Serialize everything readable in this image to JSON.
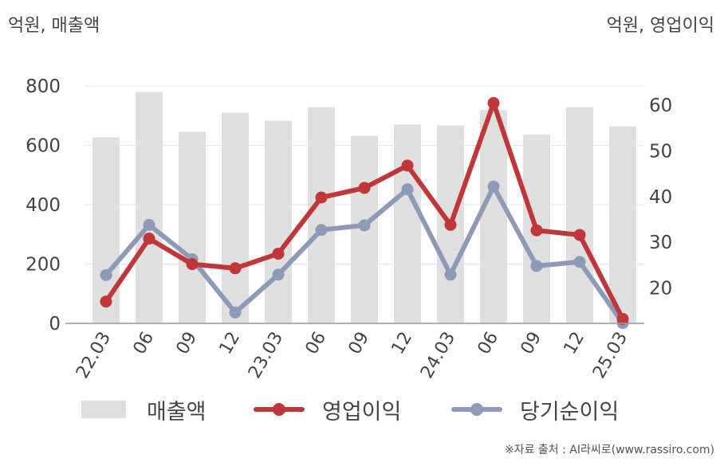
{
  "units": {
    "left": "억원, 매출액",
    "right": "억원, 영업이익"
  },
  "legend": {
    "sales": "매출액",
    "op": "영업이익",
    "net": "당기순이익"
  },
  "source": "※자료 출처 : AI라씨로(www.rassiro.com)",
  "colors": {
    "sales": "#e0e0e0",
    "op": "#c0373a",
    "net": "#8d9bb8",
    "grid": "#e6e6e6",
    "axis": "#999999",
    "text": "#444444"
  },
  "chart_data": {
    "type": "bar+line",
    "categories": [
      "22.03",
      "06",
      "09",
      "12",
      "23.03",
      "06",
      "09",
      "12",
      "24.03",
      "06",
      "09",
      "12",
      "25.03"
    ],
    "left_axis": {
      "ylim": [
        0,
        800
      ],
      "ticks": [
        0,
        200,
        400,
        600,
        800
      ]
    },
    "right_axis": {
      "ylim": [
        11,
        63
      ],
      "ticks": [
        20,
        30,
        40,
        50,
        60
      ]
    },
    "series": [
      {
        "name": "매출액",
        "type": "bar",
        "axis": "left",
        "values": [
          627,
          780,
          646,
          710,
          683,
          729,
          632,
          670,
          667,
          719,
          637,
          729,
          664
        ]
      },
      {
        "name": "영업이익",
        "type": "line",
        "axis": "right",
        "values": [
          17.0,
          30.8,
          25.2,
          24.3,
          27.5,
          39.8,
          41.9,
          46.8,
          33.8,
          60.5,
          32.6,
          31.6,
          13.2
        ]
      },
      {
        "name": "당기순이익",
        "type": "line",
        "axis": "right",
        "values": [
          22.8,
          33.8,
          26.3,
          14.6,
          22.9,
          32.7,
          33.7,
          41.6,
          22.9,
          42.2,
          24.8,
          25.7,
          12.3
        ]
      }
    ]
  }
}
